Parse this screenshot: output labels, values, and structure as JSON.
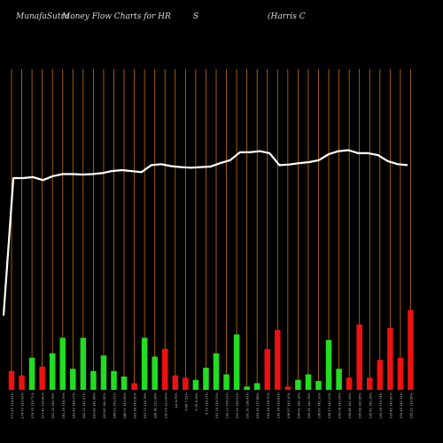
{
  "header": {
    "site": "MunafaSutra",
    "title": "Money Flow  Charts for HR",
    "exchange": "S",
    "company": "(Harris C"
  },
  "colors": {
    "background": "#000000",
    "grid": "#c8720a",
    "line": "#ffffff",
    "up_bar": "#22dd22",
    "down_bar": "#ee1111"
  },
  "chart_data": {
    "type": "bar",
    "title": "Money Flow  Charts for HR",
    "grid": true,
    "price_line": [
      15,
      84,
      84,
      84.5,
      83,
      85,
      86,
      86,
      85.8,
      86,
      86.5,
      87.5,
      88,
      87.5,
      87,
      90.5,
      91,
      90,
      89.5,
      89.2,
      89.5,
      89.8,
      91.5,
      93,
      97,
      97,
      97.5,
      96.5,
      90.5,
      90.8,
      91.5,
      92,
      93,
      96,
      97.5,
      98,
      96.5,
      96.5,
      95.5,
      92.5,
      91,
      90.5
    ],
    "bars": [
      {
        "label": "171.29 124.41%",
        "value": 17,
        "dir": "down"
      },
      {
        "label": "174.79 126.63%",
        "value": 13,
        "dir": "down"
      },
      {
        "label": "178.35 135.71%",
        "value": 29,
        "dir": "up"
      },
      {
        "label": "173.40 136.60%",
        "value": 21,
        "dir": "down"
      },
      {
        "label": "181.19 145.76%",
        "value": 33,
        "dir": "up"
      },
      {
        "label": "181.39 138.79%",
        "value": 47,
        "dir": "up"
      },
      {
        "label": "183.40 144.07%",
        "value": 19,
        "dir": "up"
      },
      {
        "label": "182.22 141.67%",
        "value": 47,
        "dir": "up"
      },
      {
        "label": "183.80 141.88%",
        "value": 17,
        "dir": "up"
      },
      {
        "label": "183.80 141.50%",
        "value": 31,
        "dir": "up"
      },
      {
        "label": "184.03 143.91%",
        "value": 17,
        "dir": "up"
      },
      {
        "label": "186.01 143.85%",
        "value": 12,
        "dir": "up"
      },
      {
        "label": "183.38 143.90%",
        "value": 6,
        "dir": "down"
      },
      {
        "label": "187.73 135.78%",
        "value": 47,
        "dir": "up"
      },
      {
        "label": "188.38 132.98%",
        "value": 30,
        "dir": "up"
      },
      {
        "label": "190.05 133.60%",
        "value": 37,
        "dir": "down"
      },
      {
        "label": "n/a 4.75%",
        "value": 13,
        "dir": "down"
      },
      {
        "label": "6.66 7.52%",
        "value": 11,
        "dir": "down"
      },
      {
        "label": "6.75 6.35%",
        "value": 9,
        "dir": "up"
      },
      {
        "label": "6.79 139.37%",
        "value": 20,
        "dir": "up"
      },
      {
        "label": "191.19 135.23%",
        "value": 33,
        "dir": "up"
      },
      {
        "label": "190.13 136.21%",
        "value": 14,
        "dir": "up"
      },
      {
        "label": "190.55 136.51%",
        "value": 50,
        "dir": "up"
      },
      {
        "label": "192.30 138.41%",
        "value": 3,
        "dir": "up"
      },
      {
        "label": "195.16 137.88%",
        "value": 6,
        "dir": "up"
      },
      {
        "label": "195.38 138.70%",
        "value": 37,
        "dir": "down"
      },
      {
        "label": "195.38 139.81%",
        "value": 54,
        "dir": "down"
      },
      {
        "label": "196.57 140.10%",
        "value": 3,
        "dir": "down"
      },
      {
        "label": "198.61 142.18%",
        "value": 9,
        "dir": "up"
      },
      {
        "label": "196.25 141.35%",
        "value": 14,
        "dir": "up"
      },
      {
        "label": "196.87 141.33%",
        "value": 8,
        "dir": "up"
      },
      {
        "label": "196.37 142.03%",
        "value": 45,
        "dir": "up"
      },
      {
        "label": "196.08 142.05%",
        "value": 19,
        "dir": "up"
      },
      {
        "label": "195.88 141.05%",
        "value": 11,
        "dir": "down"
      },
      {
        "label": "195.68 140.85%",
        "value": 59,
        "dir": "down"
      },
      {
        "label": "195.42 141.39%",
        "value": 11,
        "dir": "down"
      },
      {
        "label": "195.28 139.74%",
        "value": 27,
        "dir": "down"
      },
      {
        "label": "195.42 140.82%",
        "value": 56,
        "dir": "down"
      },
      {
        "label": "195.49 140.31%",
        "value": 29,
        "dir": "down"
      },
      {
        "label": "195.22 139.50%",
        "value": 72,
        "dir": "down"
      }
    ]
  }
}
